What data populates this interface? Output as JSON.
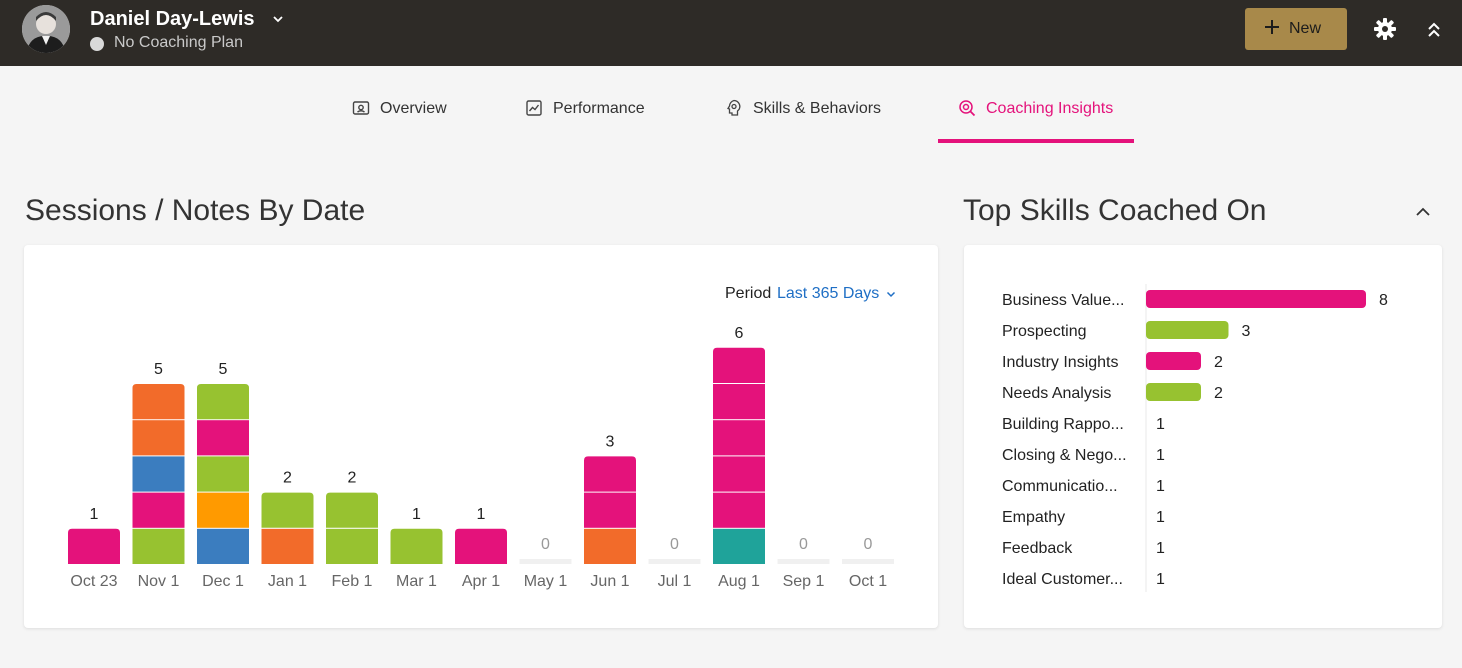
{
  "header": {
    "user_name": "Daniel Day-Lewis",
    "plan_status": "No Coaching Plan",
    "new_button": "New"
  },
  "tabs": [
    {
      "label": "Overview",
      "icon": "overview-icon",
      "active": false
    },
    {
      "label": "Performance",
      "icon": "performance-icon",
      "active": false
    },
    {
      "label": "Skills & Behaviors",
      "icon": "skills-icon",
      "active": false
    },
    {
      "label": "Coaching Insights",
      "icon": "coaching-insights-icon",
      "active": true
    }
  ],
  "sessions_card": {
    "title": "Sessions / Notes By Date",
    "period_label": "Period",
    "period_value": "Last 365 Days"
  },
  "skills_card": {
    "title": "Top Skills Coached On"
  },
  "colors": {
    "accent": "#e4127b",
    "header_bg": "#2e2b27",
    "new_button": "#a8894a",
    "link": "#1f6fc5"
  },
  "chart_data": [
    {
      "type": "bar",
      "stacked": true,
      "categories": [
        "Oct 23",
        "Nov 1",
        "Dec 1",
        "Jan 1",
        "Feb 1",
        "Mar 1",
        "Apr 1",
        "May 1",
        "Jun 1",
        "Jul 1",
        "Aug 1",
        "Sep 1",
        "Oct 1"
      ],
      "totals": [
        1,
        5,
        5,
        2,
        2,
        1,
        1,
        0,
        3,
        0,
        6,
        0,
        0
      ],
      "segments": [
        [
          "#e4127b"
        ],
        [
          "#97c230",
          "#e4127b",
          "#3b7dbf",
          "#f26b2a",
          "#f26b2a"
        ],
        [
          "#3b7dbf",
          "#ff9a00",
          "#97c230",
          "#e4127b",
          "#97c230"
        ],
        [
          "#f26b2a",
          "#97c230"
        ],
        [
          "#97c230",
          "#97c230"
        ],
        [
          "#97c230"
        ],
        [
          "#e4127b"
        ],
        [],
        [
          "#f26b2a",
          "#e4127b",
          "#e4127b"
        ],
        [],
        [
          "#1fa39a",
          "#e4127b",
          "#e4127b",
          "#e4127b",
          "#e4127b",
          "#e4127b"
        ],
        [],
        []
      ],
      "ylim": [
        0,
        6
      ],
      "grid": false
    },
    {
      "type": "bar",
      "orientation": "horizontal",
      "categories": [
        "Business Value...",
        "Prospecting",
        "Industry Insights",
        "Needs Analysis",
        "Building Rappo...",
        "Closing & Nego...",
        "Communicatio...",
        "Empathy",
        "Feedback",
        "Ideal Customer..."
      ],
      "values": [
        8,
        3,
        2,
        2,
        1,
        1,
        1,
        1,
        1,
        1
      ],
      "bar_colors": [
        "#e4127b",
        "#97c230",
        "#e4127b",
        "#97c230",
        null,
        null,
        null,
        null,
        null,
        null
      ],
      "xlim": [
        0,
        8
      ]
    }
  ]
}
